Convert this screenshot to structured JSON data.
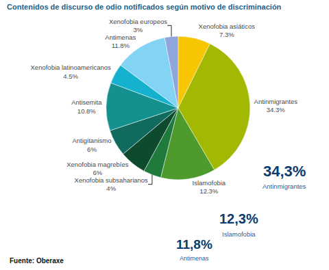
{
  "chart_data": {
    "type": "pie",
    "title": "Contenidos de discurso de odio notificados según motivo de discriminación",
    "categories": [
      "Xenofobia asiáticos",
      "Antinmigrantes",
      "Islamofobia",
      "Xenofobia subsaharianos",
      "Xenofobia magrebíes",
      "Antigitanismo",
      "Antisemita",
      "Xenofobia latinoamericanos",
      "Antimenas",
      "Xenofobia europeos"
    ],
    "values": [
      7.3,
      34.3,
      12.3,
      4,
      6,
      6,
      10.8,
      4.5,
      11.8,
      3
    ],
    "value_labels": [
      "7.3%",
      "34.3%",
      "12.3%",
      "4%",
      "6%",
      "6%",
      "10.8%",
      "4.5%",
      "11.8%",
      "3%"
    ],
    "colors": [
      "#f7c600",
      "#a3b800",
      "#4e9a2c",
      "#1f7b3c",
      "#0e4a2e",
      "#106a5d",
      "#14918f",
      "#15b1cf",
      "#82d3f4",
      "#8fa5dc"
    ],
    "data_labels": true,
    "annotations": [
      "34,3%",
      "Antinmigrantes",
      "12,3%",
      "Islamofobia",
      "11,8%",
      "Antimenas",
      "Fuente: Oberaxe"
    ]
  }
}
